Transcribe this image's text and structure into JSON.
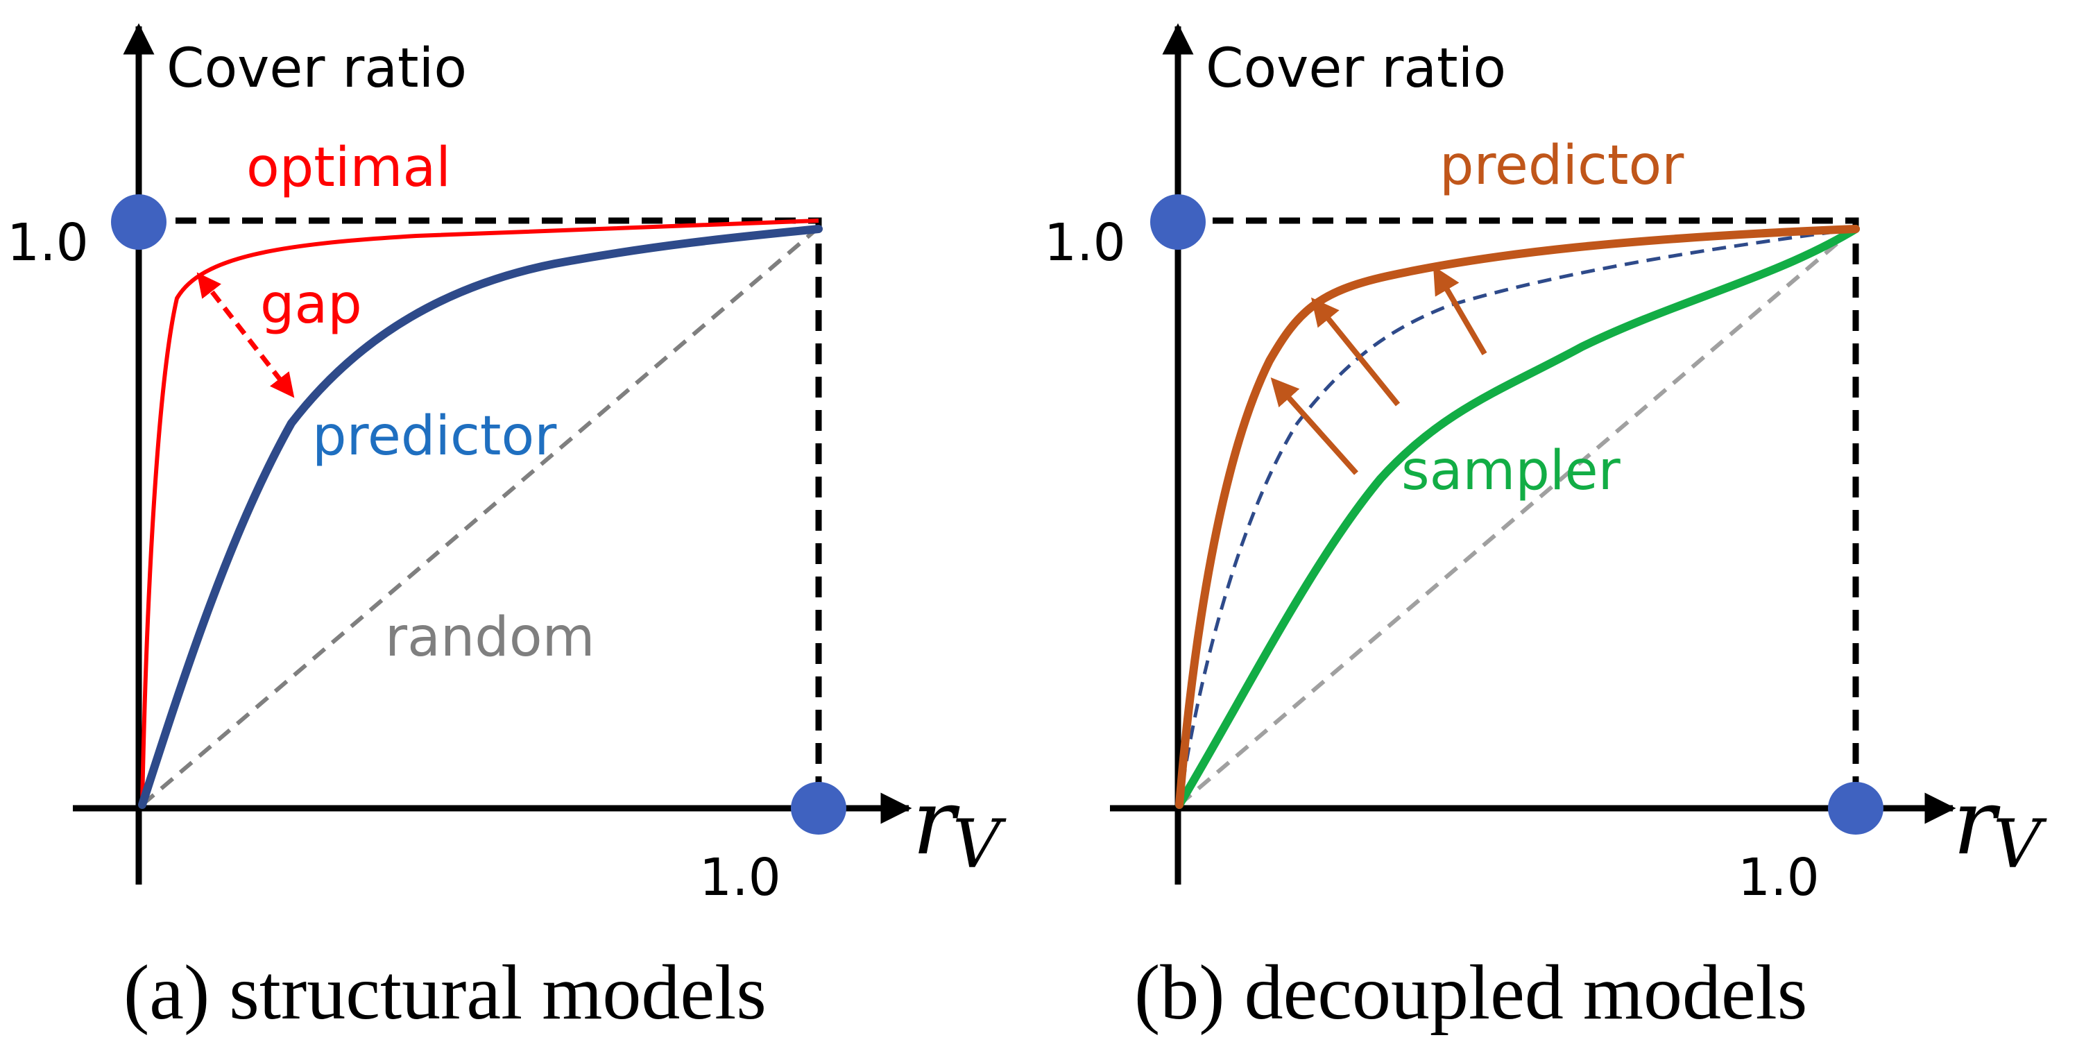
{
  "panels": [
    {
      "y_axis_label": "Cover ratio",
      "y_tick": "1.0",
      "x_tick": "1.0",
      "x_var": "r",
      "x_var_sub": "V",
      "caption": "(a) structural models",
      "labels": {
        "optimal": "optimal",
        "gap": "gap",
        "predictor": "predictor",
        "random": "random"
      }
    },
    {
      "y_axis_label": "Cover ratio",
      "y_tick": "1.0",
      "x_tick": "1.0",
      "x_var": "r",
      "x_var_sub": "V",
      "caption": "(b) decoupled models",
      "labels": {
        "predictor": "predictor",
        "sampler": "sampler"
      }
    }
  ],
  "colors": {
    "optimal": "#ff0000",
    "predictor_a": "#2e4a8a",
    "predictor_label_a": "#1f6fc0",
    "random": "#7f7f7f",
    "predictor_b": "#c0561a",
    "sampler": "#12ad45",
    "marker": "#3f62c0"
  }
}
